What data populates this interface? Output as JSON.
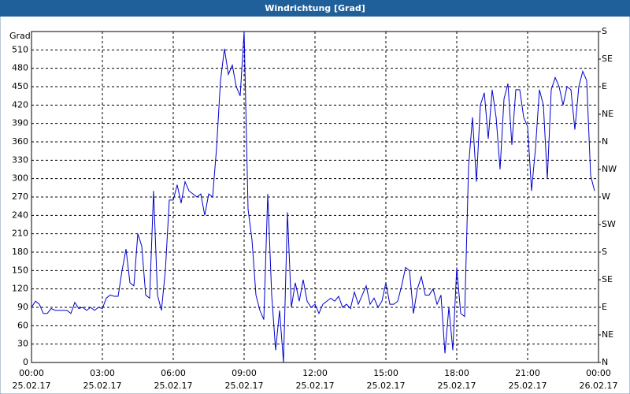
{
  "chart_data": {
    "type": "line",
    "title": "Windrichtung [Grad]",
    "y_label": "Grad",
    "xlim": [
      0,
      1440
    ],
    "xticks": [
      {
        "value": 0,
        "label": "00:00",
        "date": "25.02.17"
      },
      {
        "value": 180,
        "label": "03:00",
        "date": "25.02.17"
      },
      {
        "value": 360,
        "label": "06:00",
        "date": "25.02.17"
      },
      {
        "value": 540,
        "label": "09:00",
        "date": "25.02.17"
      },
      {
        "value": 720,
        "label": "12:00",
        "date": "25.02.17"
      },
      {
        "value": 900,
        "label": "15:00",
        "date": "25.02.17"
      },
      {
        "value": 1080,
        "label": "18:00",
        "date": "25.02.17"
      },
      {
        "value": 1260,
        "label": "21:00",
        "date": "25.02.17"
      },
      {
        "value": 1440,
        "label": "00:00",
        "date": "26.02.17"
      }
    ],
    "ylim": [
      0,
      540
    ],
    "yticks": [
      0,
      30,
      60,
      90,
      120,
      150,
      180,
      210,
      240,
      270,
      300,
      330,
      360,
      390,
      420,
      450,
      480,
      510
    ],
    "y2lim": [
      0,
      540
    ],
    "y2ticks": [
      {
        "value": 0,
        "label": "N"
      },
      {
        "value": 45,
        "label": "NE"
      },
      {
        "value": 90,
        "label": "E"
      },
      {
        "value": 135,
        "label": "SE"
      },
      {
        "value": 180,
        "label": "S"
      },
      {
        "value": 225,
        "label": "SW"
      },
      {
        "value": 270,
        "label": "W"
      },
      {
        "value": 315,
        "label": "NW"
      },
      {
        "value": 360,
        "label": "N"
      },
      {
        "value": 405,
        "label": "NE"
      },
      {
        "value": 450,
        "label": "E"
      },
      {
        "value": 495,
        "label": "SE"
      },
      {
        "value": 540,
        "label": "S"
      }
    ],
    "grid": true,
    "x": [
      0,
      10,
      20,
      30,
      40,
      50,
      60,
      70,
      80,
      90,
      100,
      110,
      120,
      130,
      140,
      150,
      160,
      170,
      180,
      190,
      200,
      210,
      220,
      230,
      240,
      250,
      260,
      270,
      280,
      290,
      300,
      310,
      320,
      330,
      340,
      350,
      360,
      370,
      380,
      390,
      400,
      410,
      420,
      430,
      440,
      450,
      460,
      470,
      480,
      490,
      500,
      510,
      520,
      530,
      540,
      550,
      560,
      570,
      580,
      590,
      600,
      610,
      620,
      630,
      640,
      650,
      660,
      670,
      680,
      690,
      700,
      710,
      720,
      730,
      740,
      750,
      760,
      770,
      780,
      790,
      800,
      810,
      820,
      830,
      840,
      850,
      860,
      870,
      880,
      890,
      900,
      910,
      920,
      930,
      940,
      950,
      960,
      970,
      980,
      990,
      1000,
      1010,
      1020,
      1030,
      1040,
      1050,
      1060,
      1070,
      1080,
      1090,
      1100,
      1110,
      1120,
      1130,
      1140,
      1150,
      1160,
      1170,
      1180,
      1190,
      1200,
      1210,
      1220,
      1230,
      1240,
      1250,
      1260,
      1270,
      1280,
      1290,
      1300,
      1310,
      1320,
      1330,
      1340,
      1350,
      1360,
      1370,
      1380,
      1390,
      1400,
      1410,
      1420,
      1430
    ],
    "series": [
      {
        "color": "#0000cc",
        "values": [
          90,
          100,
          95,
          80,
          80,
          88,
          85,
          85,
          85,
          85,
          80,
          98,
          88,
          90,
          85,
          90,
          85,
          90,
          88,
          105,
          110,
          108,
          108,
          150,
          185,
          130,
          125,
          210,
          190,
          110,
          105,
          280,
          110,
          85,
          150,
          265,
          265,
          290,
          260,
          295,
          280,
          275,
          270,
          275,
          240,
          275,
          270,
          350,
          460,
          512,
          470,
          485,
          450,
          435,
          540,
          250,
          200,
          110,
          85,
          70,
          275,
          110,
          20,
          85,
          0,
          245,
          90,
          130,
          100,
          135,
          100,
          90,
          95,
          80,
          95,
          100,
          105,
          100,
          108,
          90,
          95,
          88,
          115,
          95,
          110,
          125,
          95,
          105,
          90,
          100,
          130,
          95,
          95,
          100,
          125,
          155,
          150,
          80,
          120,
          140,
          110,
          110,
          120,
          95,
          110,
          15,
          90,
          20,
          155,
          80,
          75,
          320,
          400,
          295,
          420,
          440,
          365,
          445,
          400,
          315,
          430,
          455,
          355,
          445,
          445,
          400,
          385,
          280,
          350,
          445,
          420,
          300,
          445,
          465,
          450,
          420,
          450,
          445,
          380,
          450,
          475,
          460,
          305,
          280
        ]
      }
    ]
  }
}
